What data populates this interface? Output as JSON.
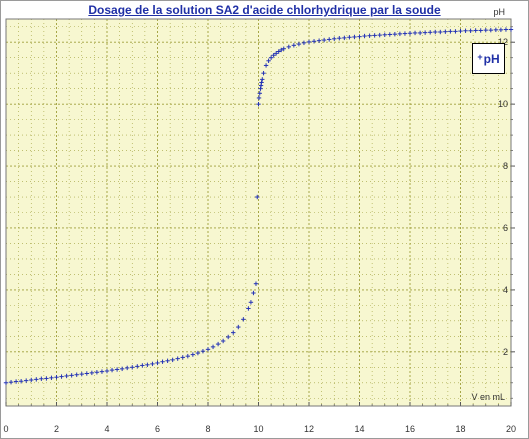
{
  "chart_data": {
    "type": "scatter",
    "title": "Dosage de la solution SA2 d'acide chlorhydrique par la soude",
    "xlabel": "V en mL",
    "ylabel": "pH",
    "xlim": [
      0,
      20
    ],
    "ylim": [
      0.25,
      12.75
    ],
    "x_ticks": [
      0,
      2,
      4,
      6,
      8,
      10,
      12,
      14,
      16,
      18,
      20
    ],
    "y_ticks": [
      2,
      4,
      6,
      8,
      10,
      12
    ],
    "grid": true,
    "legend_position": "top-right",
    "colors": {
      "background": "#f7f7d0",
      "grid": "#9e9e3a",
      "series": "#2433b5",
      "title": "#1f2fa6"
    },
    "series": [
      {
        "name": "pH",
        "marker": "+",
        "x": [
          0,
          0.2,
          0.4,
          0.6,
          0.8,
          1.0,
          1.2,
          1.4,
          1.6,
          1.8,
          2.0,
          2.2,
          2.4,
          2.6,
          2.8,
          3.0,
          3.2,
          3.4,
          3.6,
          3.8,
          4.0,
          4.2,
          4.4,
          4.6,
          4.8,
          5.0,
          5.2,
          5.4,
          5.6,
          5.8,
          6.0,
          6.2,
          6.4,
          6.6,
          6.8,
          7.0,
          7.2,
          7.4,
          7.6,
          7.8,
          8.0,
          8.2,
          8.4,
          8.6,
          8.8,
          9.0,
          9.2,
          9.4,
          9.6,
          9.7,
          9.8,
          9.9,
          9.95,
          10.0,
          10.02,
          10.05,
          10.08,
          10.1,
          10.12,
          10.15,
          10.2,
          10.3,
          10.4,
          10.5,
          10.6,
          10.7,
          10.8,
          10.9,
          11.0,
          11.2,
          11.4,
          11.6,
          11.8,
          12.0,
          12.2,
          12.4,
          12.6,
          12.8,
          13.0,
          13.2,
          13.4,
          13.6,
          13.8,
          14.0,
          14.2,
          14.4,
          14.6,
          14.8,
          15.0,
          15.2,
          15.4,
          15.6,
          15.8,
          16.0,
          16.2,
          16.4,
          16.6,
          16.8,
          17.0,
          17.2,
          17.4,
          17.6,
          17.8,
          18.0,
          18.2,
          18.4,
          18.6,
          18.8,
          19.0,
          19.2,
          19.4,
          19.6,
          19.8,
          20.0
        ],
        "y": [
          1.0,
          1.02,
          1.04,
          1.05,
          1.07,
          1.09,
          1.11,
          1.13,
          1.14,
          1.16,
          1.18,
          1.2,
          1.22,
          1.24,
          1.26,
          1.28,
          1.3,
          1.32,
          1.34,
          1.36,
          1.38,
          1.41,
          1.43,
          1.45,
          1.48,
          1.5,
          1.53,
          1.56,
          1.58,
          1.61,
          1.64,
          1.68,
          1.71,
          1.74,
          1.78,
          1.82,
          1.86,
          1.91,
          1.96,
          2.02,
          2.08,
          2.16,
          2.25,
          2.35,
          2.48,
          2.62,
          2.8,
          3.05,
          3.4,
          3.6,
          3.9,
          4.2,
          7.0,
          10.0,
          10.2,
          10.35,
          10.5,
          10.6,
          10.7,
          10.8,
          11.0,
          11.25,
          11.4,
          11.5,
          11.58,
          11.64,
          11.7,
          11.75,
          11.79,
          11.85,
          11.9,
          11.94,
          11.98,
          12.01,
          12.03,
          12.05,
          12.07,
          12.09,
          12.11,
          12.13,
          12.14,
          12.16,
          12.17,
          12.18,
          12.2,
          12.21,
          12.22,
          12.23,
          12.24,
          12.25,
          12.26,
          12.27,
          12.28,
          12.29,
          12.3,
          12.3,
          12.31,
          12.32,
          12.33,
          12.33,
          12.34,
          12.35,
          12.35,
          12.36,
          12.37,
          12.37,
          12.38,
          12.38,
          12.39,
          12.39,
          12.4,
          12.4,
          12.41,
          12.41
        ]
      }
    ]
  }
}
